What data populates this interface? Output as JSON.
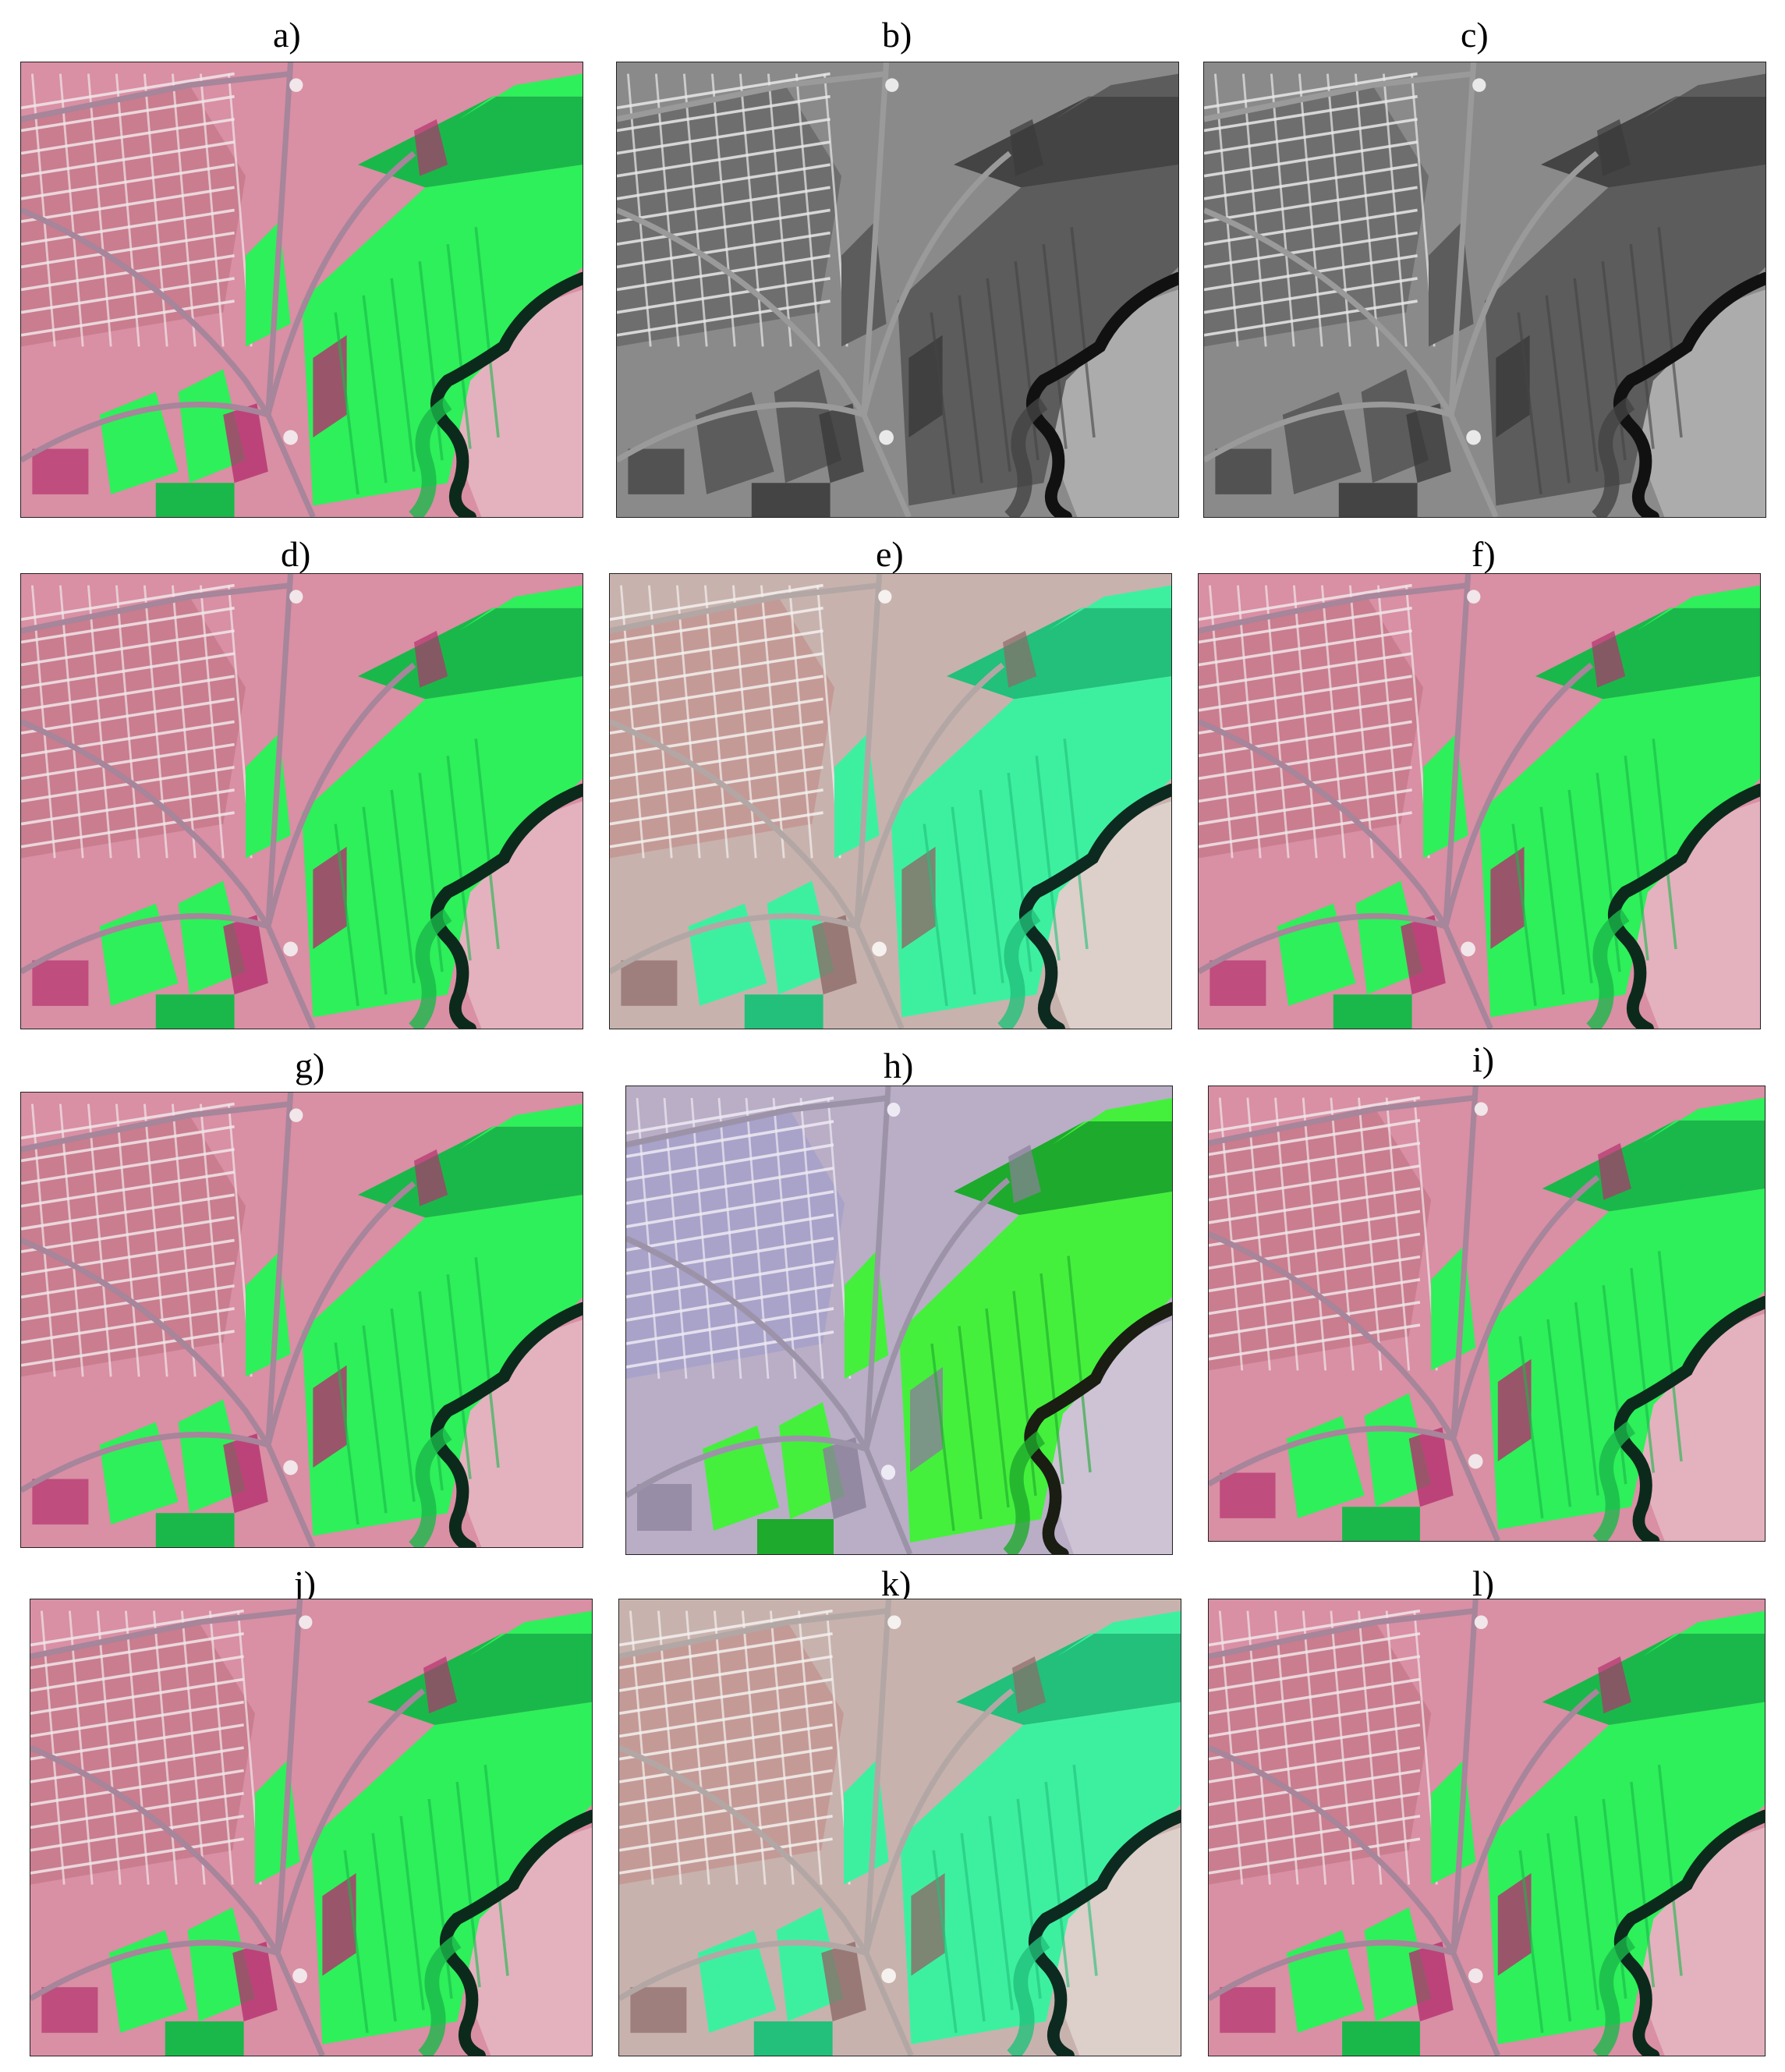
{
  "panels": [
    {
      "id": "a",
      "label": "a)",
      "style": "false-color",
      "variant": "coarse"
    },
    {
      "id": "b",
      "label": "b)",
      "style": "grayscale",
      "variant": "pan"
    },
    {
      "id": "c",
      "label": "c)",
      "style": "grayscale",
      "variant": "pan-light"
    },
    {
      "id": "d",
      "label": "d)",
      "style": "false-color",
      "variant": "fused"
    },
    {
      "id": "e",
      "label": "e)",
      "style": "false-color-pale",
      "variant": "fused-pale"
    },
    {
      "id": "f",
      "label": "f)",
      "style": "false-color",
      "variant": "fused"
    },
    {
      "id": "g",
      "label": "g)",
      "style": "false-color",
      "variant": "fused"
    },
    {
      "id": "h",
      "label": "h)",
      "style": "false-color-violet",
      "variant": "fused-noisy"
    },
    {
      "id": "i",
      "label": "i)",
      "style": "false-color",
      "variant": "fused"
    },
    {
      "id": "j",
      "label": "j)",
      "style": "false-color",
      "variant": "fused"
    },
    {
      "id": "k",
      "label": "k)",
      "style": "false-color-pale",
      "variant": "fused-pale"
    },
    {
      "id": "l",
      "label": "l)",
      "style": "false-color",
      "variant": "fused"
    }
  ],
  "palettes": {
    "false-color": {
      "background": "#d98fa4",
      "urban": "#c97d8e",
      "urban_grid": "#f1e6ea",
      "veg": "#2ef05a",
      "veg_dark": "#1ab84a",
      "field_dark": "#b4306e",
      "river": "#0c2a1c",
      "road": "#a7859a",
      "bare": "#e6b9c6"
    },
    "false-color-pale": {
      "background": "#c8b2ad",
      "urban": "#c49a96",
      "urban_grid": "#f4f1ef",
      "veg": "#3df0a0",
      "veg_dark": "#22c07a",
      "field_dark": "#8d6a68",
      "river": "#0d2a20",
      "road": "#b2a7a5",
      "bare": "#e2d6cf"
    },
    "false-color-violet": {
      "background": "#b9aec6",
      "urban": "#a9a2c9",
      "urban_grid": "#eeeaf4",
      "veg": "#44f03c",
      "veg_dark": "#1eaa2c",
      "field_dark": "#8a7f98",
      "river": "#1a1d12",
      "road": "#9d93a8",
      "bare": "#d2c8d8"
    },
    "grayscale": {
      "background": "#8a8a8a",
      "urban": "#6e6e6e",
      "urban_grid": "#e9e9e9",
      "veg": "#5c5c5c",
      "veg_dark": "#444444",
      "field_dark": "#3a3a3a",
      "river": "#111111",
      "road": "#9a9a9a",
      "bare": "#b4b4b4"
    }
  }
}
